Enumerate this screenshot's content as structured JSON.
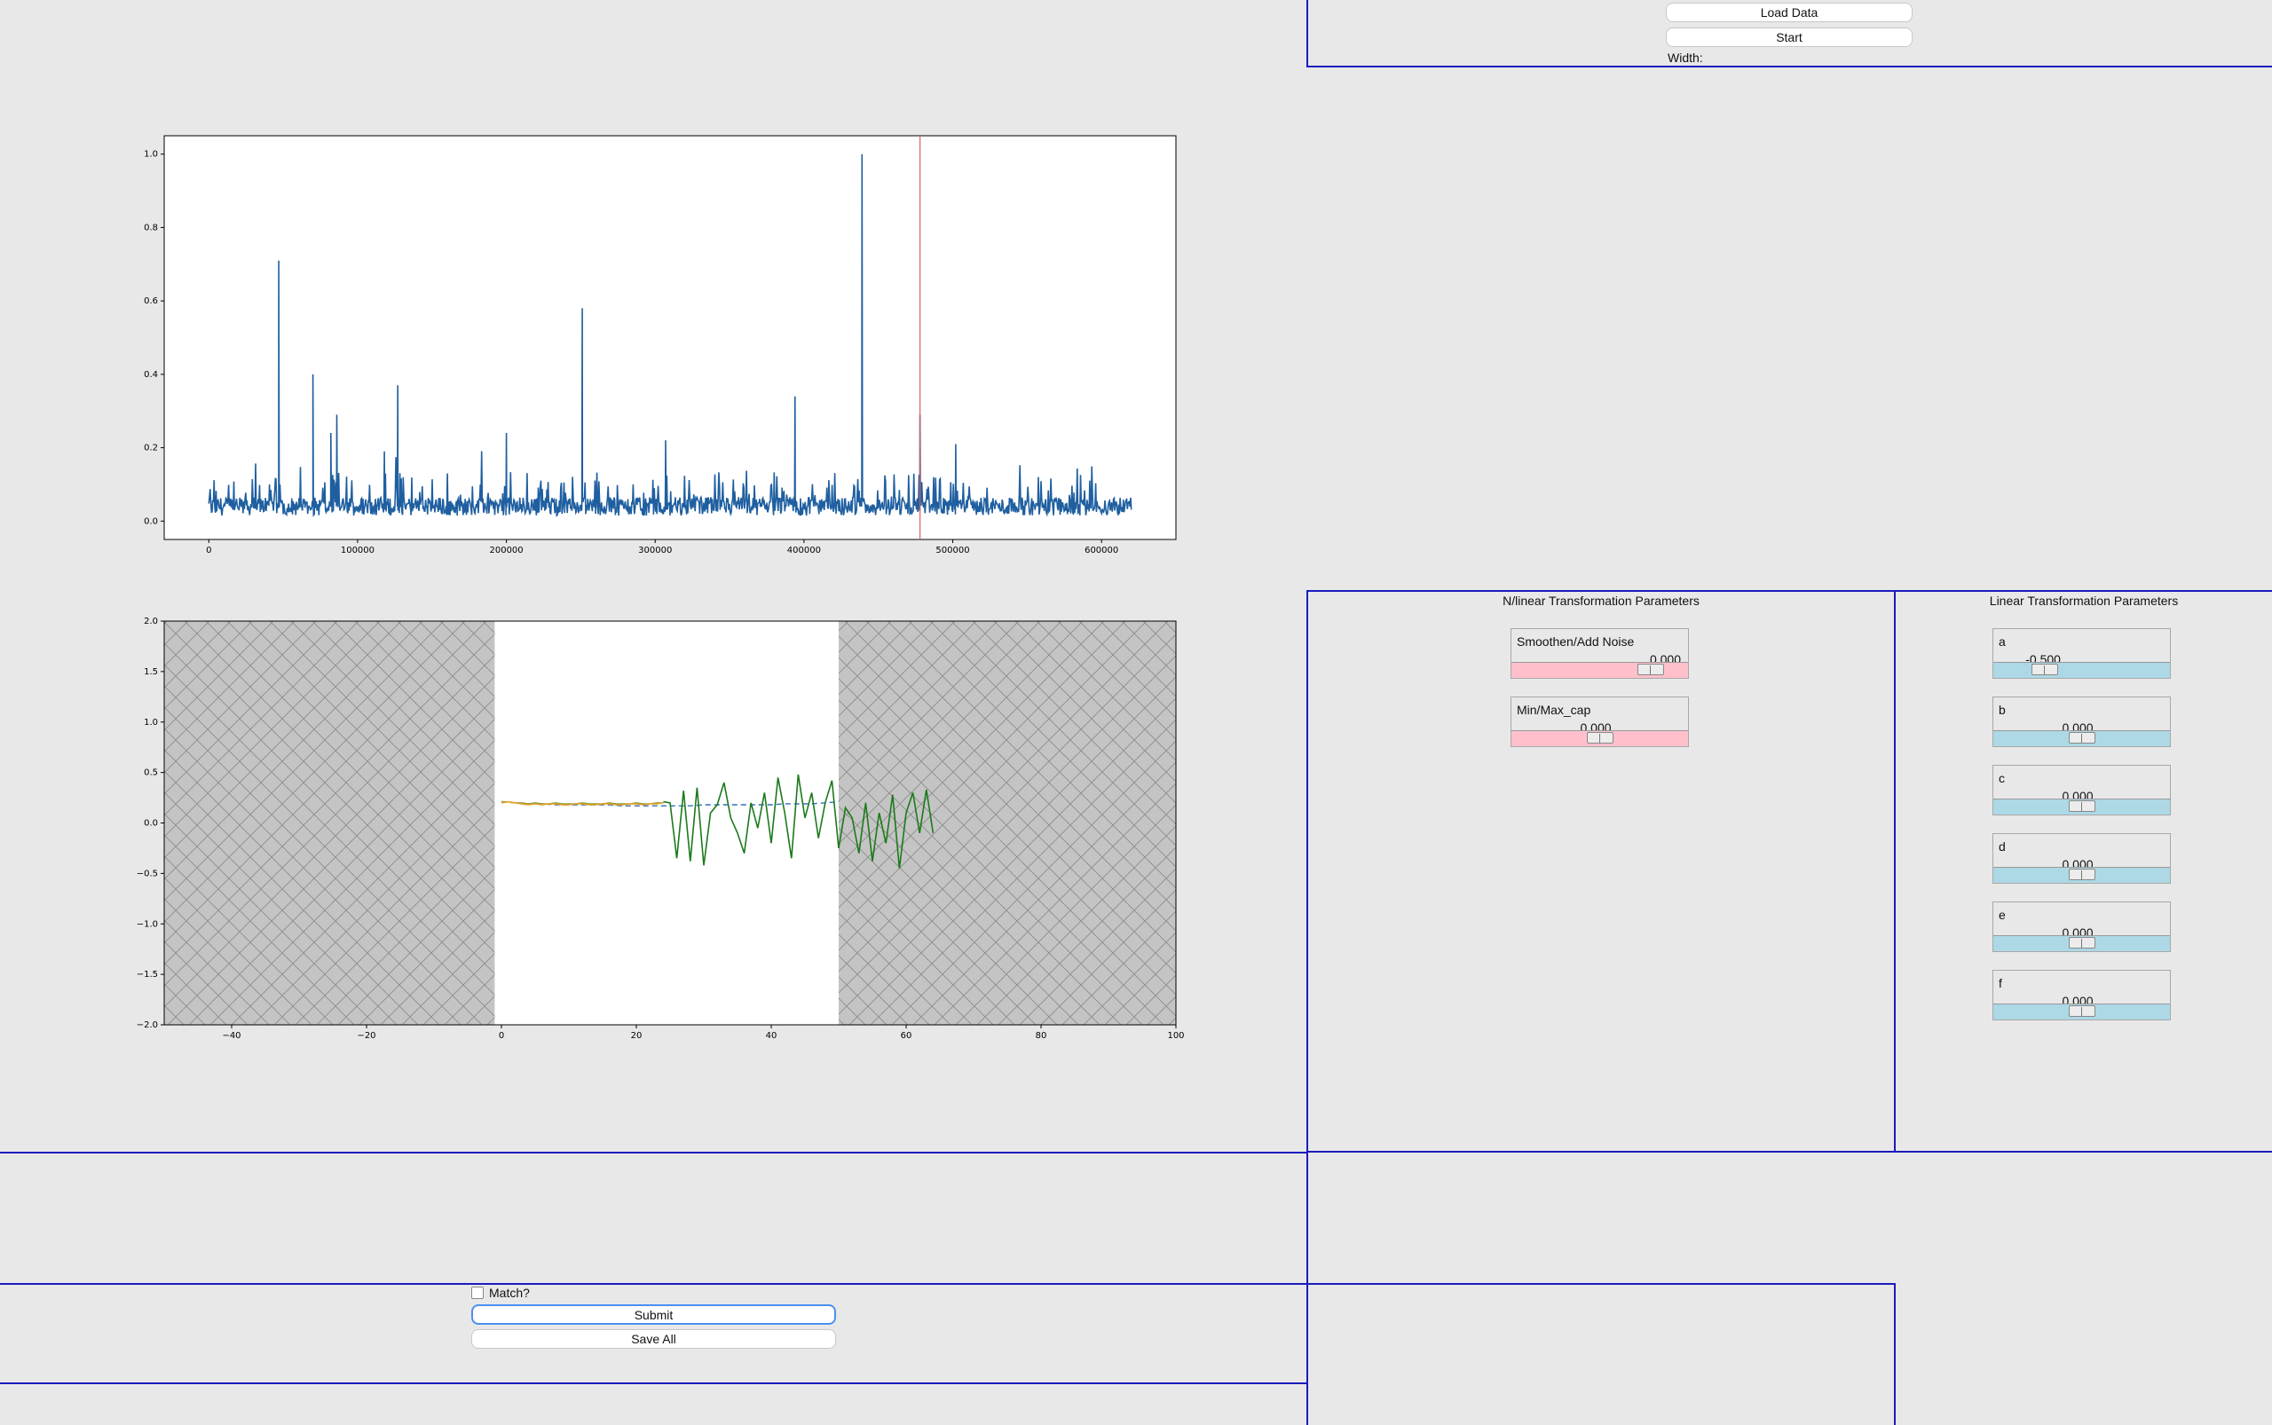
{
  "controls": {
    "load_data_label": "Load Data",
    "start_label": "Start",
    "width_label": "Width:"
  },
  "nonlinear_panel": {
    "title": "N/linear Transformation Parameters",
    "sliders": [
      {
        "name": "Smoothen/Add Noise",
        "value_text": "0.000",
        "value": 0.0,
        "fraction": 0.85
      },
      {
        "name": "Min/Max_cap",
        "value_text": "0.000",
        "value": 0.0,
        "fraction": 0.5
      }
    ]
  },
  "linear_panel": {
    "title": "Linear Transformation Parameters",
    "sliders": [
      {
        "name": "a",
        "value_text": "-0.500",
        "value": -0.5,
        "fraction": 0.25
      },
      {
        "name": "b",
        "value_text": "0.000",
        "value": 0.0,
        "fraction": 0.5
      },
      {
        "name": "c",
        "value_text": "0.000",
        "value": 0.0,
        "fraction": 0.5
      },
      {
        "name": "d",
        "value_text": "0.000",
        "value": 0.0,
        "fraction": 0.5
      },
      {
        "name": "e",
        "value_text": "0.000",
        "value": 0.0,
        "fraction": 0.5
      },
      {
        "name": "f",
        "value_text": "0.000",
        "value": 0.0,
        "fraction": 0.5
      }
    ]
  },
  "bottom_controls": {
    "match_label": "Match?",
    "match_checked": false,
    "submit_label": "Submit",
    "save_all_label": "Save All"
  },
  "colors": {
    "series_blue": "#1f5fa0",
    "marker_red": "#e05a5a",
    "frame_blue": "#1b1bbe",
    "window_green": "#1a7a1a",
    "window_orange": "#e6a020",
    "window_dashed": "#2e6fc0"
  },
  "chart_data": [
    {
      "type": "line",
      "xlim": [
        -30000,
        650000
      ],
      "ylim": [
        -0.05,
        1.05
      ],
      "xticks": [
        "0",
        "100000",
        "200000",
        "300000",
        "400000",
        "500000",
        "600000"
      ],
      "yticks": [
        "0.0",
        "0.2",
        "0.4",
        "0.6",
        "0.8",
        "1.0"
      ],
      "x_range": [
        0,
        620000
      ],
      "baseline": 0.04,
      "spikes": [
        {
          "x": 47000,
          "y": 0.71
        },
        {
          "x": 70000,
          "y": 0.4
        },
        {
          "x": 82000,
          "y": 0.24
        },
        {
          "x": 86000,
          "y": 0.29
        },
        {
          "x": 118000,
          "y": 0.19
        },
        {
          "x": 127000,
          "y": 0.37
        },
        {
          "x": 200000,
          "y": 0.24
        },
        {
          "x": 251000,
          "y": 0.58
        },
        {
          "x": 307000,
          "y": 0.22
        },
        {
          "x": 394000,
          "y": 0.34
        },
        {
          "x": 439000,
          "y": 1.0
        },
        {
          "x": 478000,
          "y": 0.29
        },
        {
          "x": 502000,
          "y": 0.21
        }
      ],
      "marker_x": 478000
    },
    {
      "type": "line",
      "xlim": [
        -50,
        100
      ],
      "ylim": [
        -2.0,
        2.0
      ],
      "xticks": [
        "−40",
        "−20",
        "0",
        "20",
        "40",
        "60",
        "80",
        "100"
      ],
      "yticks": [
        "−2.0",
        "−1.5",
        "−1.0",
        "−0.5",
        "0.0",
        "0.5",
        "1.0",
        "1.5",
        "2.0"
      ],
      "window": [
        -1,
        50
      ],
      "series": [
        {
          "values": [
            0.21,
            0.21,
            0.2,
            0.2,
            0.19,
            0.2,
            0.19,
            0.19,
            0.2,
            0.19,
            0.19,
            0.19,
            0.2,
            0.19,
            0.19,
            0.19,
            0.2,
            0.19,
            0.19,
            0.19,
            0.2,
            0.19,
            0.19,
            0.2,
            0.2
          ],
          "x_start": 0
        },
        {
          "values": [
            0.2,
            0.21,
            0.2,
            0.19,
            0.18,
            0.19,
            0.18,
            0.19,
            0.19,
            0.18,
            0.18,
            0.19,
            0.19,
            0.18,
            0.18,
            0.19,
            0.19,
            0.18,
            0.18,
            0.19,
            0.19,
            0.18,
            0.19,
            0.19,
            0.2
          ],
          "x_start": 0
        },
        {
          "values": [
            0.21,
            0.2,
            -0.35,
            0.32,
            -0.38,
            0.35,
            -0.42,
            0.1,
            0.18,
            0.4,
            0.05,
            -0.1,
            -0.3,
            0.2,
            -0.05,
            0.3,
            -0.2,
            0.45,
            0.1,
            -0.35,
            0.48,
            0.05,
            0.3,
            -0.15,
            0.2,
            0.42,
            -0.25,
            0.15,
            0.05,
            -0.3,
            0.2,
            -0.38,
            0.1,
            -0.2,
            0.28,
            -0.45,
            0.1,
            0.3,
            -0.1,
            0.33,
            -0.1
          ],
          "x_start": 24
        },
        {
          "values": [
            0.21,
            0.2,
            0.19,
            0.19,
            0.18,
            0.18,
            0.18,
            0.18,
            0.18,
            0.17,
            0.17,
            0.17,
            0.17,
            0.17,
            0.17,
            0.18,
            0.18,
            0.18,
            0.18,
            0.18,
            0.18,
            0.19,
            0.19,
            0.19,
            0.2,
            0.21
          ],
          "x_start": 0,
          "x_step": 2
        }
      ]
    }
  ]
}
